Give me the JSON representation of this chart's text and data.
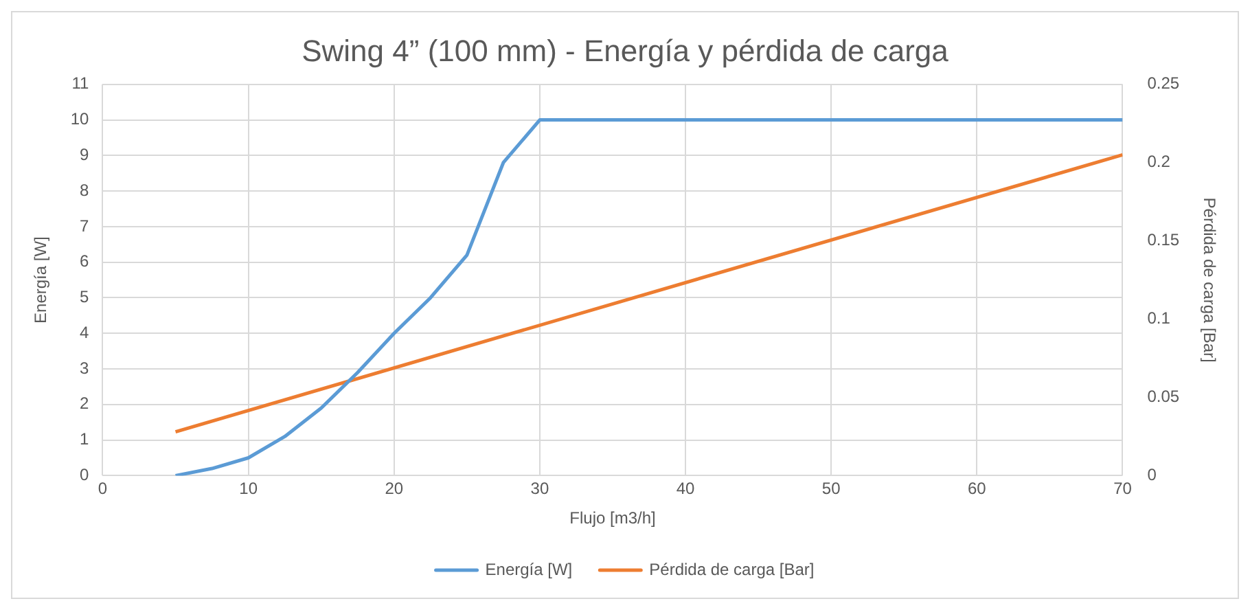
{
  "chart_data": {
    "type": "line",
    "title": "Swing 4” (100 mm) - Energía y pérdida de carga",
    "xlabel": "Flujo [m3/h]",
    "ylabel": "Energía [W]",
    "y2label": "Pérdida de carga [Bar]",
    "xlim": [
      0,
      70
    ],
    "xticks": [
      0,
      10,
      20,
      30,
      40,
      50,
      60,
      70
    ],
    "ylim": [
      0,
      11
    ],
    "yticks": [
      0,
      1,
      2,
      3,
      4,
      5,
      6,
      7,
      8,
      9,
      10,
      11
    ],
    "y2lim": [
      0,
      0.25
    ],
    "y2ticks": [
      0,
      0.05,
      0.1,
      0.15,
      0.2,
      0.25
    ],
    "grid": true,
    "legend": "bottom",
    "marker": "none",
    "line_style": "solid",
    "series": [
      {
        "name": "Energía [W]",
        "color": "#5b9bd5",
        "x": [
          5,
          7.5,
          10,
          12.5,
          15,
          17.5,
          20,
          22.5,
          25,
          27.5,
          30,
          70
        ],
        "values": [
          0,
          0.2,
          0.5,
          1.1,
          1.9,
          2.9,
          4.0,
          5.0,
          6.2,
          8.8,
          10,
          10
        ]
      },
      {
        "name": "Pérdida de carga [Bar]",
        "color": "#ed7d31",
        "axis": "y2",
        "x": [
          5,
          70
        ],
        "values": [
          0.028,
          0.205
        ]
      }
    ]
  }
}
